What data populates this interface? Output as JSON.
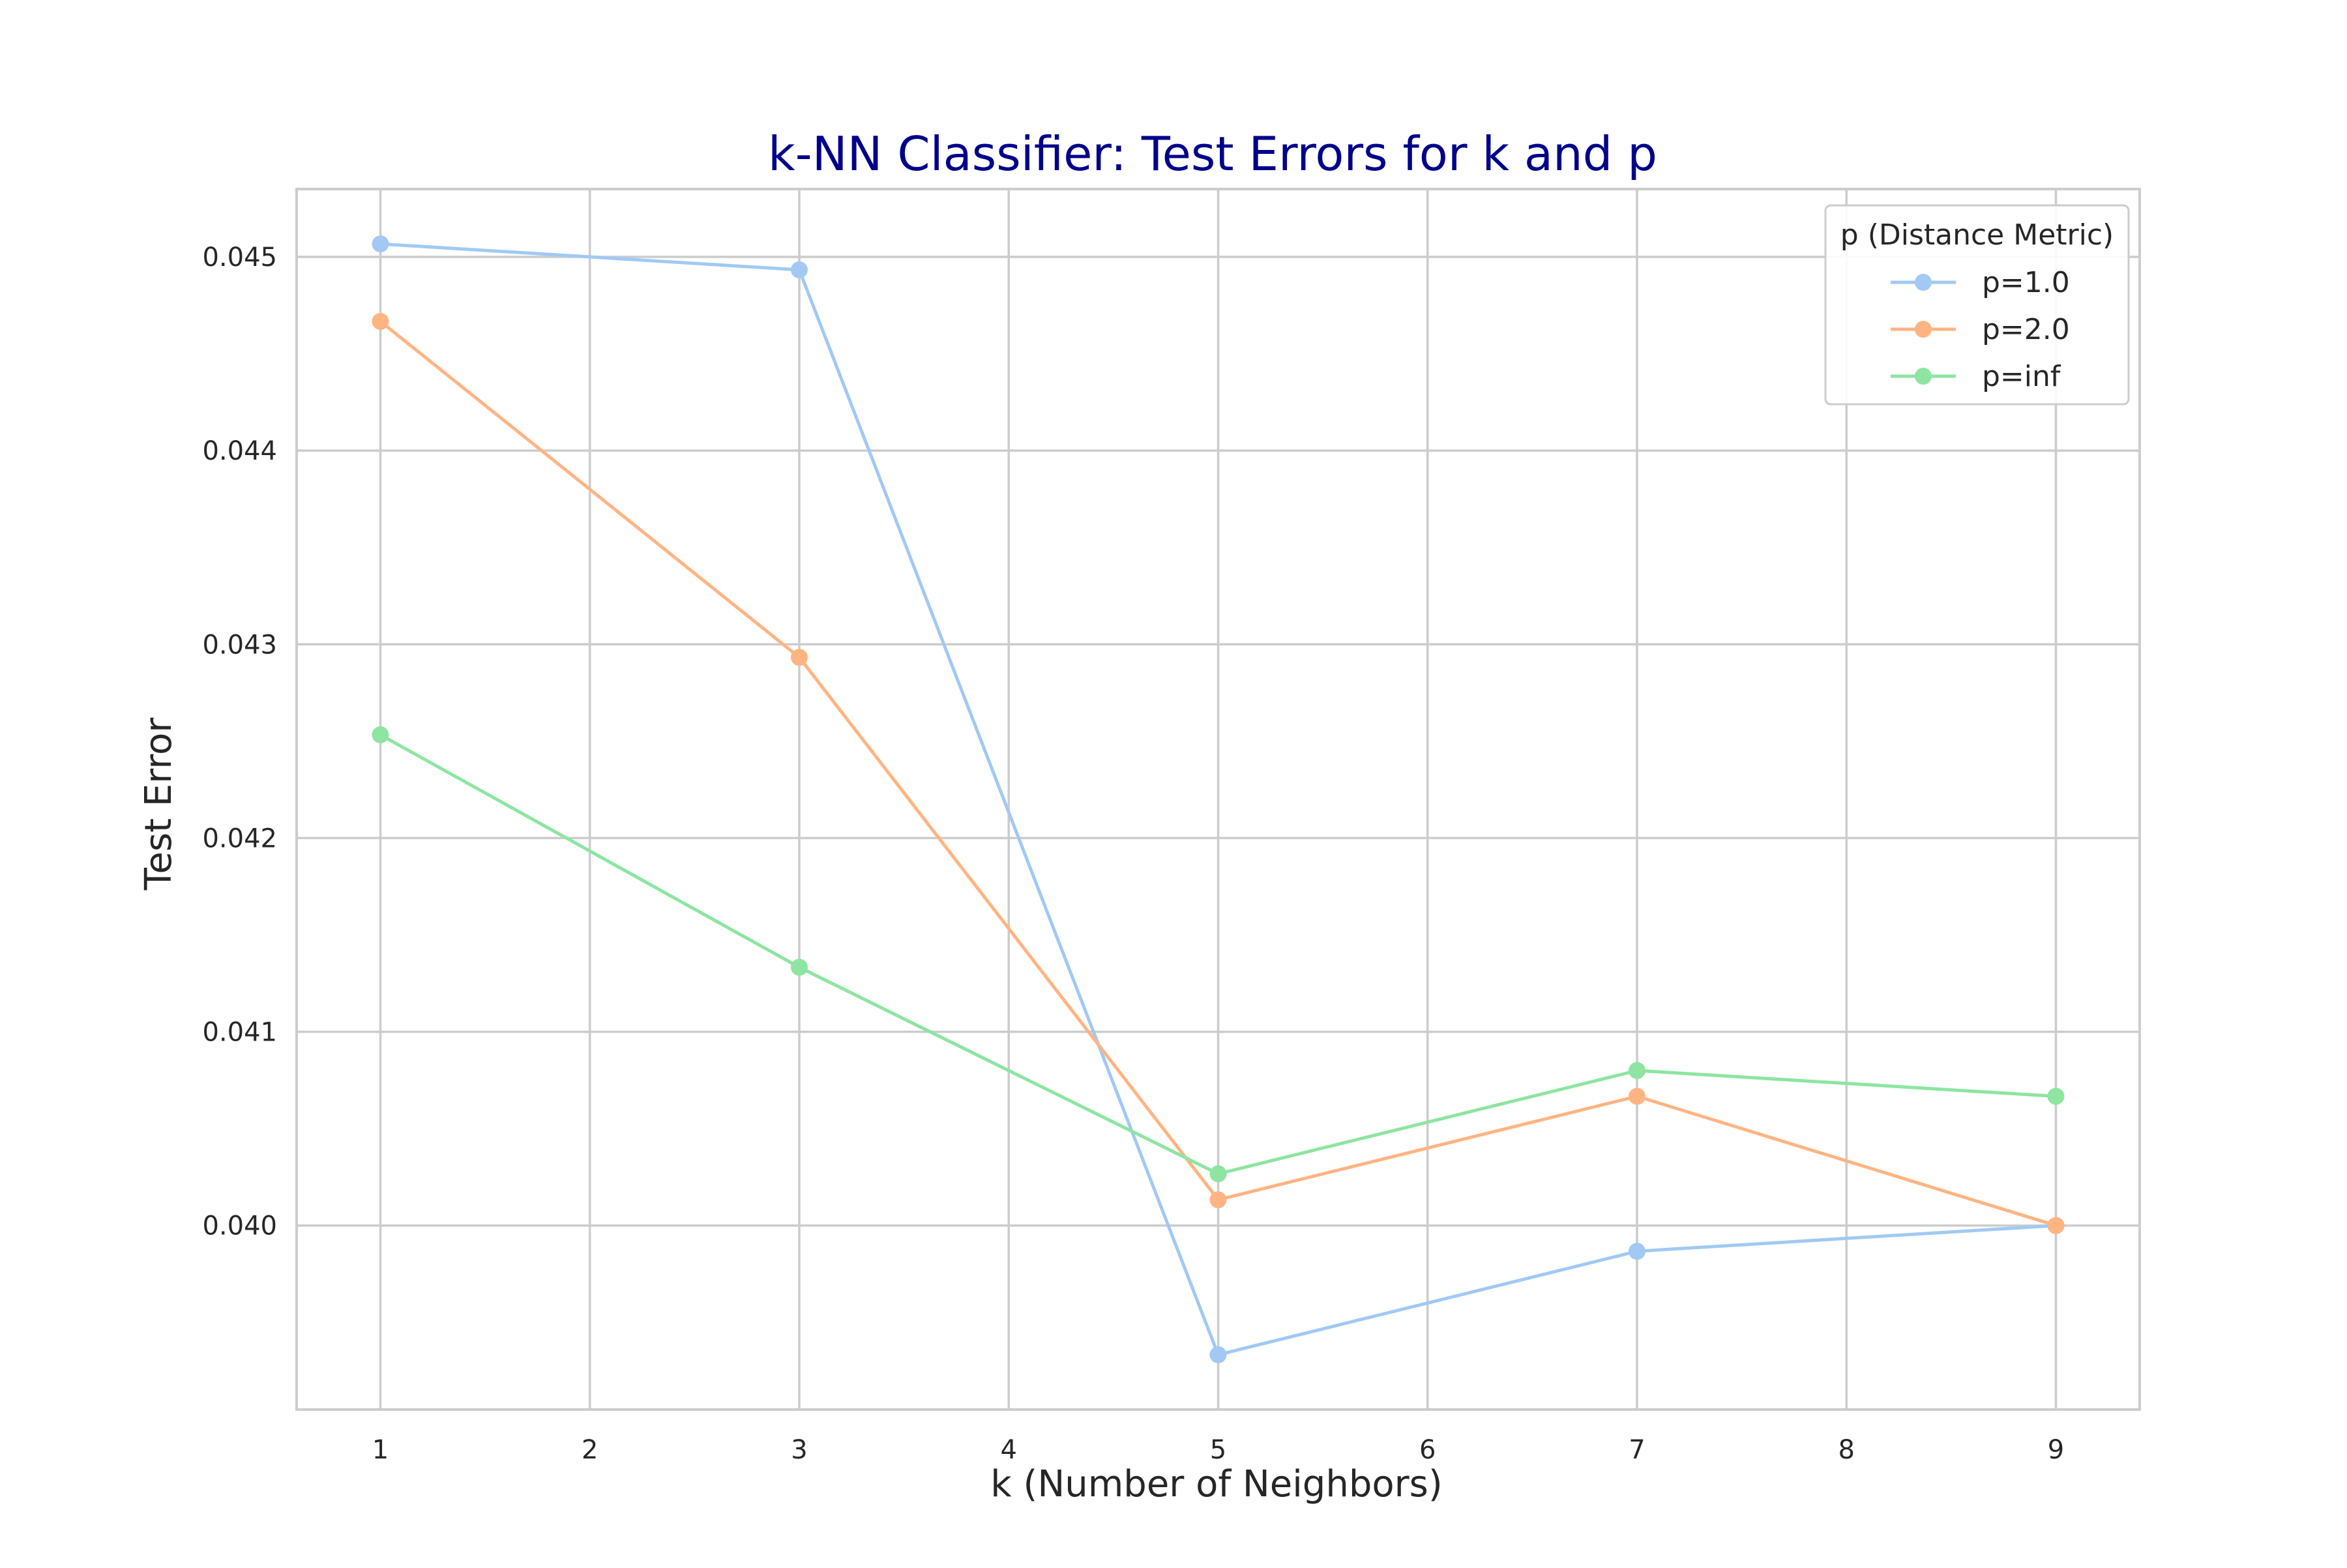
{
  "chart_data": {
    "type": "line",
    "title": "k-NN Classifier: Test Errors for k and p",
    "xlabel": "k (Number of Neighbors)",
    "ylabel": "Test Error",
    "x": [
      1,
      3,
      5,
      7,
      9
    ],
    "xticks": [
      "1",
      "2",
      "3",
      "4",
      "5",
      "6",
      "7",
      "8",
      "9"
    ],
    "xtick_values": [
      1,
      2,
      3,
      4,
      5,
      6,
      7,
      8,
      9
    ],
    "yticks": [
      "0.040",
      "0.041",
      "0.042",
      "0.043",
      "0.044",
      "0.045"
    ],
    "ytick_values": [
      0.04,
      0.041,
      0.042,
      0.043,
      0.044,
      0.045
    ],
    "xlim": [
      0.6,
      9.4
    ],
    "ylim": [
      0.03905,
      0.04535
    ],
    "grid": true,
    "legend": {
      "title": "p (Distance Metric)",
      "placement": "top-right"
    },
    "series": [
      {
        "name": "p=1.0",
        "color": "#a1c9f4",
        "values": [
          0.045067,
          0.044933,
          0.039333,
          0.039867,
          0.04
        ]
      },
      {
        "name": "p=2.0",
        "color": "#ffb482",
        "values": [
          0.044667,
          0.042933,
          0.040133,
          0.040667,
          0.04
        ]
      },
      {
        "name": "p=inf",
        "color": "#8de5a1",
        "values": [
          0.042533,
          0.041333,
          0.040267,
          0.0408,
          0.040667
        ]
      }
    ],
    "colors": {
      "title": "#00008b",
      "axis_label": "#262626",
      "tick_label": "#262626",
      "grid": "#cccccc",
      "frame": "#cccccc"
    }
  }
}
